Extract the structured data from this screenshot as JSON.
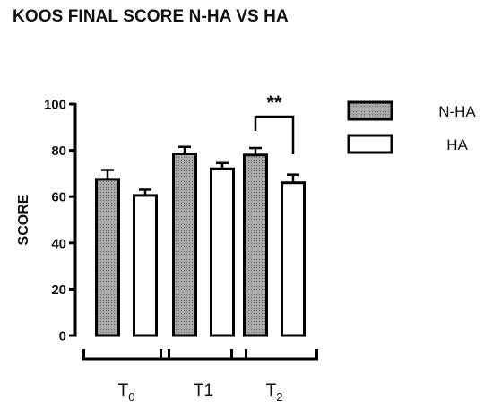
{
  "chart_data": {
    "type": "bar",
    "title": "KOOS FINAL SCORE N-HA VS HA",
    "ylabel": "SCORE",
    "xlabel": "",
    "ylim": [
      0,
      100
    ],
    "yticks": [
      0,
      20,
      40,
      60,
      80,
      100
    ],
    "categories": [
      {
        "base": "T",
        "sub": "0"
      },
      {
        "base": "T1",
        "sub": ""
      },
      {
        "base": "T",
        "sub": "2"
      }
    ],
    "series": [
      {
        "name": "N-HA",
        "values": [
          67.5,
          78.5,
          78
        ],
        "errors": [
          4,
          3,
          3
        ],
        "fill": "dotted-gray"
      },
      {
        "name": "HA",
        "values": [
          60.5,
          72,
          66
        ],
        "errors": [
          2.5,
          2.5,
          3.5
        ],
        "fill": "white"
      }
    ],
    "annotations": [
      {
        "text": "**",
        "category_index": 2
      }
    ],
    "legend_position": "right",
    "grid": false,
    "colors": {
      "nha_fill": "#a9a9a9",
      "ha_fill": "#ffffff",
      "stroke": "#000000"
    }
  }
}
